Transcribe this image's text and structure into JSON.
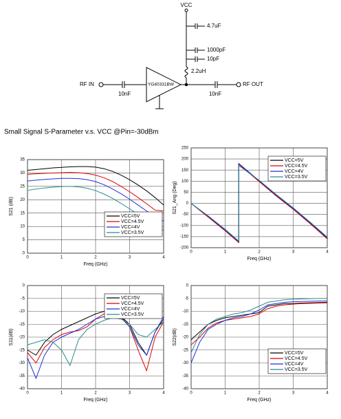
{
  "schematic": {
    "vcc": "VCC",
    "c1": "4.7uF",
    "c2": "1000pF",
    "c3": "10pF",
    "inductor": "2.2uH",
    "rf_in": "RF IN",
    "c_in": "10nF",
    "chip": "YG40331BW",
    "c_out": "10nF",
    "rf_out": "RF OUT"
  },
  "heading": "Small Signal S-Parameter v.s. VCC @Pin=-30dBm",
  "chart_data": [
    {
      "type": "line",
      "x_label": "Freq (GHz)",
      "y_label": "S21 (dB)",
      "x": [
        0,
        0.25,
        0.5,
        0.75,
        1,
        1.25,
        1.5,
        1.75,
        2,
        2.25,
        2.5,
        2.75,
        3,
        3.25,
        3.5,
        3.75,
        4
      ],
      "xlim": [
        0,
        4
      ],
      "xticks": [
        0,
        1,
        2,
        3,
        4
      ],
      "ylim": [
        0,
        35
      ],
      "yticks": [
        0,
        5,
        10,
        15,
        20,
        25,
        30,
        35
      ],
      "grid": true,
      "legend": "center right",
      "series": [
        {
          "name": "VCC=5V",
          "color": "#000000",
          "values": [
            31,
            31.3,
            31.6,
            31.9,
            32.1,
            32.3,
            32.4,
            32.4,
            32.2,
            31.6,
            30.6,
            29.2,
            27.5,
            25.5,
            23.3,
            20.8,
            18
          ]
        },
        {
          "name": "VCC=4.5V",
          "color": "#e00000",
          "values": [
            29.5,
            29.7,
            29.9,
            30,
            30.1,
            30.2,
            30.1,
            29.8,
            29.2,
            28.2,
            26.8,
            25,
            23,
            20.8,
            18.5,
            16.1,
            15.8
          ]
        },
        {
          "name": "VCC=4V",
          "color": "#1f2fd8",
          "values": [
            27,
            27.3,
            27.6,
            27.8,
            28,
            28,
            27.9,
            27.5,
            26.8,
            25.6,
            24,
            22.2,
            20.2,
            18,
            15.8,
            13.6,
            12
          ]
        },
        {
          "name": "VCC=3.5V",
          "color": "#2a8c8c",
          "values": [
            23.5,
            24,
            24.4,
            24.7,
            24.9,
            25,
            24.8,
            24.3,
            23.4,
            22.1,
            20.5,
            18.6,
            16.6,
            14.5,
            12.4,
            10.3,
            8.5
          ]
        }
      ]
    },
    {
      "type": "line",
      "x_label": "Freq (GHz)",
      "y_label": "S21_Ang (Deg)",
      "x": [
        0,
        0.5,
        1,
        1.4,
        1.4,
        2,
        2.5,
        3,
        3.5,
        4
      ],
      "xlim": [
        0,
        4
      ],
      "xticks": [
        0,
        1,
        2,
        3,
        4
      ],
      "ylim": [
        -200,
        250
      ],
      "yticks": [
        -200,
        -150,
        -100,
        -50,
        0,
        50,
        100,
        150,
        200,
        250
      ],
      "grid": true,
      "legend": "upper right",
      "series": [
        {
          "name": "VCC=5V",
          "color": "#000000",
          "values": [
            0,
            -60,
            -122,
            -175,
            178,
            100,
            35,
            -25,
            -90,
            -158
          ]
        },
        {
          "name": "VCC=4.5V",
          "color": "#e00000",
          "values": [
            0,
            -62,
            -124,
            -177,
            176,
            98,
            33,
            -27,
            -92,
            -160
          ]
        },
        {
          "name": "VCC=4V",
          "color": "#1f2fd8",
          "values": [
            0,
            -58,
            -120,
            -173,
            180,
            102,
            37,
            -23,
            -88,
            -155
          ]
        },
        {
          "name": "VCC=3.5V",
          "color": "#2a8c8c",
          "values": [
            0,
            -56,
            -117,
            -170,
            170,
            104,
            40,
            -20,
            -85,
            -152
          ]
        }
      ]
    },
    {
      "type": "line",
      "x_label": "Freq (GHz)",
      "y_label": "S11(dB)",
      "x": [
        0,
        0.25,
        0.5,
        0.75,
        1,
        1.25,
        1.5,
        1.75,
        2,
        2.25,
        2.5,
        2.75,
        3,
        3.25,
        3.5,
        3.75,
        4
      ],
      "xlim": [
        0,
        4
      ],
      "xticks": [
        0,
        1,
        2,
        3,
        4
      ],
      "ylim": [
        -40,
        0
      ],
      "yticks": [
        -40,
        -35,
        -30,
        -25,
        -20,
        -15,
        -10,
        -5,
        0
      ],
      "grid": true,
      "legend": "upper right",
      "series": [
        {
          "name": "VCC=5V",
          "color": "#000000",
          "values": [
            -25,
            -27,
            -22,
            -19,
            -17,
            -15.5,
            -14,
            -12.5,
            -11,
            -10,
            -10.5,
            -12,
            -15,
            -22,
            -27,
            -18,
            -13
          ]
        },
        {
          "name": "VCC=4.5V",
          "color": "#e00000",
          "values": [
            -26,
            -30,
            -24,
            -21,
            -19,
            -18,
            -17.5,
            -16,
            -13,
            -11,
            -10.5,
            -12,
            -16,
            -25,
            -33,
            -20,
            -14
          ]
        },
        {
          "name": "VCC=4V",
          "color": "#1f2fd8",
          "values": [
            -28,
            -36,
            -27,
            -22,
            -20,
            -18.5,
            -17,
            -15,
            -13,
            -12,
            -12,
            -12.5,
            -16,
            -23,
            -27,
            -18,
            -12
          ]
        },
        {
          "name": "VCC=3.5V",
          "color": "#2a8c8c",
          "values": [
            -23,
            -22,
            -21,
            -22,
            -25,
            -31,
            -21,
            -17,
            -15,
            -13.5,
            -12.5,
            -13,
            -15,
            -19,
            -20,
            -17,
            -14
          ]
        }
      ]
    },
    {
      "type": "line",
      "x_label": "Freq (GHz)",
      "y_label": "S22(dB)",
      "x": [
        0,
        0.25,
        0.5,
        0.75,
        1,
        1.25,
        1.5,
        1.75,
        2,
        2.25,
        2.5,
        2.75,
        3,
        3.25,
        3.5,
        3.75,
        4
      ],
      "xlim": [
        0,
        4
      ],
      "xticks": [
        0,
        1,
        2,
        3,
        4
      ],
      "ylim": [
        -40,
        0
      ],
      "yticks": [
        -40,
        -35,
        -30,
        -25,
        -20,
        -15,
        -10,
        -5,
        0
      ],
      "grid": true,
      "legend": "lower right",
      "series": [
        {
          "name": "VCC=5V",
          "color": "#000000",
          "values": [
            -21,
            -18,
            -15,
            -13.5,
            -12.5,
            -12,
            -11.5,
            -11,
            -10.5,
            -8,
            -7.5,
            -7,
            -7,
            -6.8,
            -6.7,
            -6.6,
            -6.5
          ]
        },
        {
          "name": "VCC=4.5V",
          "color": "#e00000",
          "values": [
            -23,
            -20,
            -16.5,
            -14.5,
            -13.5,
            -13,
            -12.5,
            -12,
            -11,
            -9,
            -8,
            -7.5,
            -7.2,
            -7,
            -6.9,
            -6.8,
            -6.7
          ]
        },
        {
          "name": "VCC=4V",
          "color": "#1f2fd8",
          "values": [
            -30,
            -22,
            -17,
            -15,
            -13.5,
            -12.5,
            -12,
            -11,
            -9.5,
            -7.5,
            -7,
            -6.5,
            -6.3,
            -6.2,
            -6.1,
            -6,
            -6
          ]
        },
        {
          "name": "VCC=3.5V",
          "color": "#2a8c8c",
          "values": [
            -26,
            -19,
            -15,
            -13,
            -12,
            -11,
            -10.5,
            -9.5,
            -8,
            -6.5,
            -6,
            -5.5,
            -5.3,
            -5.2,
            -5.1,
            -5,
            -5
          ]
        }
      ]
    }
  ]
}
